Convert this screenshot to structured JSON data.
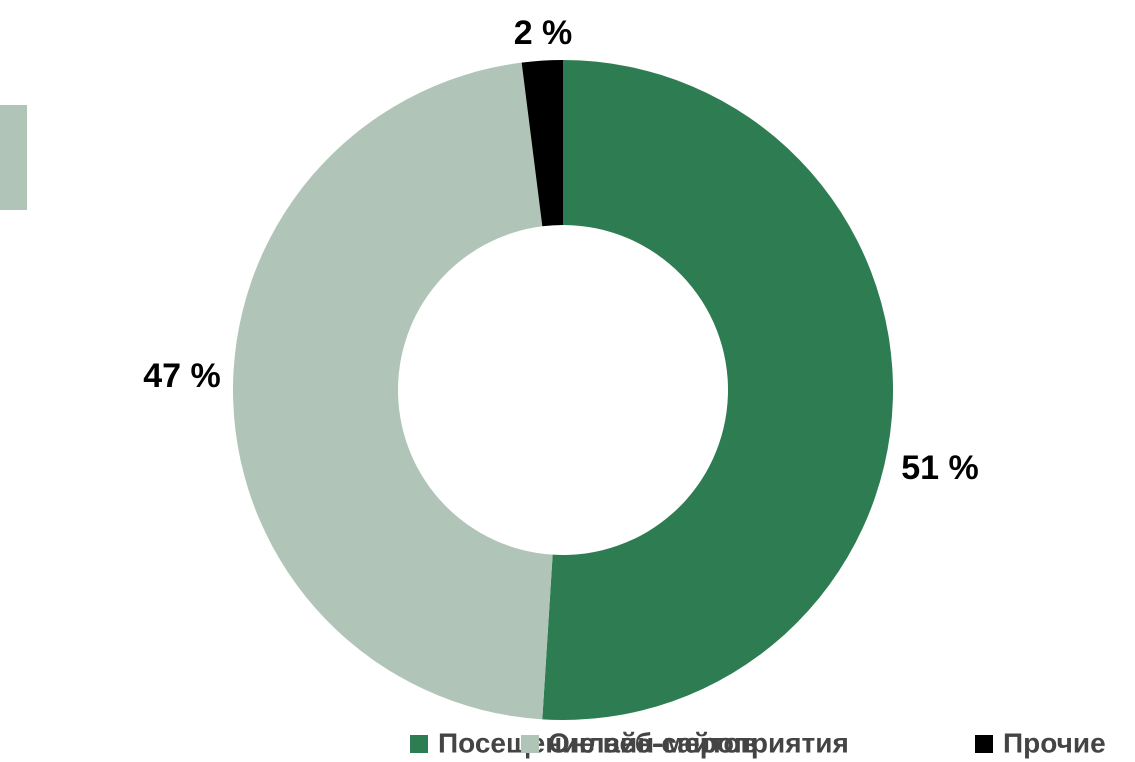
{
  "chart_data": {
    "type": "donut",
    "categories": [
      "Посещение веб-сайтов",
      "Онлайн-мероприятия",
      "Прочие"
    ],
    "values": [
      51,
      47,
      2
    ],
    "value_labels": [
      "51 %",
      "47 %",
      "2 %"
    ],
    "colors": [
      "#2e7d52",
      "#b0c5b8",
      "#000000"
    ]
  }
}
